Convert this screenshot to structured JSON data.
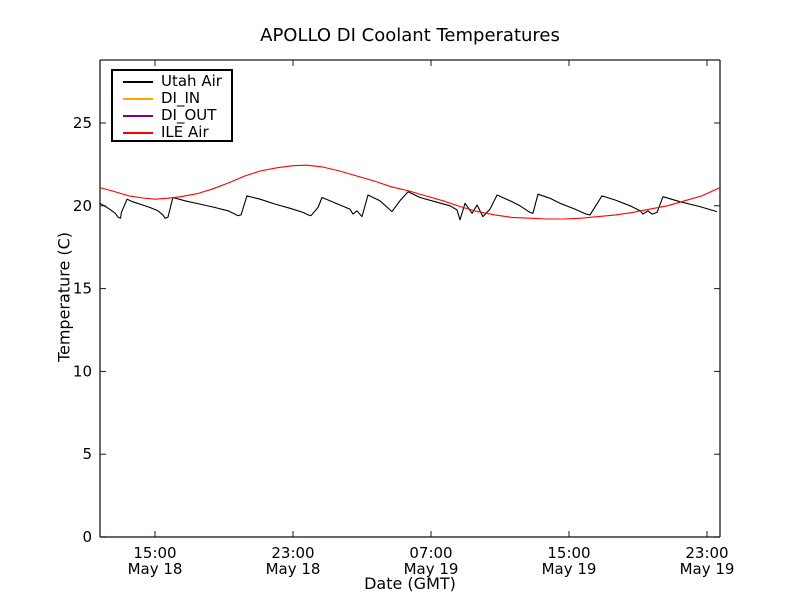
{
  "figure": {
    "background": "#ffffff"
  },
  "chart_data": {
    "type": "line",
    "title": "APOLLO DI Coolant Temperatures",
    "xlabel": "Date (GMT)",
    "ylabel": "Temperature (C)",
    "grid": false,
    "legend_position": "upper left",
    "x_unit": "hours since May 18 00:00 GMT",
    "xlim": [
      11.81,
      47.75
    ],
    "ylim": [
      0,
      28.8
    ],
    "y_ticks": [
      0,
      5,
      10,
      15,
      20,
      25
    ],
    "x_ticks": [
      {
        "hour": 15,
        "time": "15:00",
        "date": "May 18"
      },
      {
        "hour": 23,
        "time": "23:00",
        "date": "May 18"
      },
      {
        "hour": 31,
        "time": "07:00",
        "date": "May 19"
      },
      {
        "hour": 39,
        "time": "15:00",
        "date": "May 19"
      },
      {
        "hour": 47,
        "time": "23:00",
        "date": "May 19"
      }
    ],
    "style": {
      "frame_color": "#1a1a1a",
      "bottom_spine_color": "#4a2c2c",
      "tick_direction": "in",
      "tick_length": 6
    },
    "series": [
      {
        "name": "Utah Air",
        "color": "#000000",
        "points": [
          [
            11.81,
            20.15
          ],
          [
            12.3,
            19.85
          ],
          [
            12.7,
            19.55
          ],
          [
            12.87,
            19.3
          ],
          [
            13.0,
            19.25
          ],
          [
            13.05,
            19.6
          ],
          [
            13.38,
            20.4
          ],
          [
            13.7,
            20.25
          ],
          [
            14.13,
            20.1
          ],
          [
            14.71,
            19.9
          ],
          [
            15.17,
            19.7
          ],
          [
            15.46,
            19.45
          ],
          [
            15.58,
            19.25
          ],
          [
            15.75,
            19.3
          ],
          [
            16.04,
            20.5
          ],
          [
            16.74,
            20.3
          ],
          [
            17.61,
            20.1
          ],
          [
            18.48,
            19.9
          ],
          [
            19.23,
            19.7
          ],
          [
            19.64,
            19.5
          ],
          [
            19.81,
            19.4
          ],
          [
            19.99,
            19.45
          ],
          [
            20.33,
            20.6
          ],
          [
            21.09,
            20.4
          ],
          [
            21.96,
            20.1
          ],
          [
            22.83,
            19.85
          ],
          [
            23.58,
            19.6
          ],
          [
            23.87,
            19.45
          ],
          [
            24.04,
            19.4
          ],
          [
            24.45,
            19.9
          ],
          [
            24.68,
            20.5
          ],
          [
            25.14,
            20.3
          ],
          [
            25.72,
            20.05
          ],
          [
            26.3,
            19.8
          ],
          [
            26.48,
            19.5
          ],
          [
            26.71,
            19.7
          ],
          [
            27.0,
            19.35
          ],
          [
            27.35,
            20.65
          ],
          [
            28.04,
            20.3
          ],
          [
            28.74,
            19.65
          ],
          [
            29.2,
            20.3
          ],
          [
            29.67,
            20.85
          ],
          [
            30.36,
            20.5
          ],
          [
            31.23,
            20.25
          ],
          [
            32.1,
            20.0
          ],
          [
            32.51,
            19.75
          ],
          [
            32.68,
            19.15
          ],
          [
            32.97,
            20.15
          ],
          [
            33.38,
            19.55
          ],
          [
            33.67,
            20.05
          ],
          [
            34.01,
            19.35
          ],
          [
            34.42,
            19.8
          ],
          [
            34.83,
            20.65
          ],
          [
            35.58,
            20.3
          ],
          [
            36.16,
            20.0
          ],
          [
            36.74,
            19.6
          ],
          [
            36.91,
            19.55
          ],
          [
            37.2,
            20.7
          ],
          [
            37.9,
            20.45
          ],
          [
            38.48,
            20.15
          ],
          [
            39.35,
            19.8
          ],
          [
            39.99,
            19.5
          ],
          [
            40.22,
            19.45
          ],
          [
            40.91,
            20.6
          ],
          [
            41.67,
            20.35
          ],
          [
            42.54,
            20.0
          ],
          [
            43.12,
            19.7
          ],
          [
            43.29,
            19.5
          ],
          [
            43.58,
            19.7
          ],
          [
            43.81,
            19.5
          ],
          [
            44.1,
            19.6
          ],
          [
            44.45,
            20.55
          ],
          [
            45.43,
            20.25
          ],
          [
            46.59,
            19.95
          ],
          [
            47.58,
            19.65
          ]
        ]
      },
      {
        "name": "DI_IN",
        "color": "#ffa500",
        "points": []
      },
      {
        "name": "DI_OUT",
        "color": "#800080",
        "points": []
      },
      {
        "name": "ILE Air",
        "color": "#ff0000",
        "points": [
          [
            11.81,
            21.1
          ],
          [
            12.5,
            20.9
          ],
          [
            13.5,
            20.6
          ],
          [
            14.3,
            20.47
          ],
          [
            15.0,
            20.4
          ],
          [
            15.7,
            20.45
          ],
          [
            16.5,
            20.55
          ],
          [
            17.5,
            20.75
          ],
          [
            18.3,
            21.0
          ],
          [
            19.3,
            21.4
          ],
          [
            20.2,
            21.8
          ],
          [
            21.1,
            22.1
          ],
          [
            22.1,
            22.3
          ],
          [
            23.0,
            22.42
          ],
          [
            23.8,
            22.45
          ],
          [
            24.7,
            22.35
          ],
          [
            25.7,
            22.1
          ],
          [
            26.7,
            21.8
          ],
          [
            27.7,
            21.5
          ],
          [
            28.7,
            21.15
          ],
          [
            29.7,
            20.9
          ],
          [
            30.7,
            20.6
          ],
          [
            31.7,
            20.3
          ],
          [
            32.7,
            19.95
          ],
          [
            33.7,
            19.65
          ],
          [
            34.7,
            19.45
          ],
          [
            35.7,
            19.3
          ],
          [
            36.7,
            19.25
          ],
          [
            37.7,
            19.2
          ],
          [
            38.7,
            19.2
          ],
          [
            39.7,
            19.25
          ],
          [
            40.7,
            19.35
          ],
          [
            41.7,
            19.45
          ],
          [
            42.7,
            19.6
          ],
          [
            43.7,
            19.8
          ],
          [
            44.7,
            20.0
          ],
          [
            45.7,
            20.3
          ],
          [
            46.7,
            20.6
          ],
          [
            47.75,
            21.1
          ]
        ]
      }
    ]
  }
}
